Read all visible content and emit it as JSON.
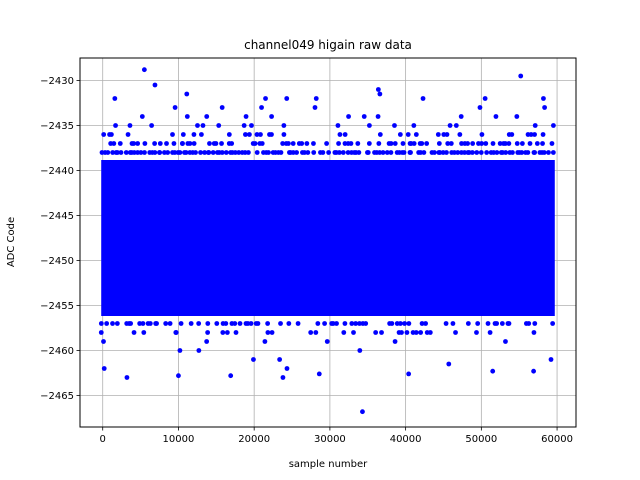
{
  "chart_data": {
    "type": "scatter",
    "title": "channel049 higain raw data",
    "xlabel": "sample number",
    "ylabel": "ADC Code",
    "xlim": [
      -3000,
      62500
    ],
    "ylim": [
      -2468.5,
      -2427.5
    ],
    "xticks": [
      0,
      10000,
      20000,
      30000,
      40000,
      50000,
      60000
    ],
    "yticks": [
      -2465,
      -2460,
      -2455,
      -2450,
      -2445,
      -2440,
      -2435,
      -2430
    ],
    "grid": true,
    "marker_color": "#0000ff",
    "n_samples": 60000,
    "dense_band": [
      -2456,
      -2439
    ],
    "sparse_levels": [
      -2438,
      -2437,
      -2436,
      -2435,
      -2434,
      -2433,
      -2432,
      -2457,
      -2458,
      -2459,
      -2460,
      -2461,
      -2462
    ],
    "outliers": [
      {
        "x": 5500,
        "y": -2428.8
      },
      {
        "x": 55200,
        "y": -2429.5
      },
      {
        "x": 6900,
        "y": -2430.5
      },
      {
        "x": 36400,
        "y": -2431
      },
      {
        "x": 36600,
        "y": -2431.5
      },
      {
        "x": 11100,
        "y": -2431.5
      },
      {
        "x": 58200,
        "y": -2432
      },
      {
        "x": 1600,
        "y": -2432
      },
      {
        "x": 24300,
        "y": -2432
      },
      {
        "x": 21500,
        "y": -2432
      },
      {
        "x": 28200,
        "y": -2432
      },
      {
        "x": 42300,
        "y": -2432
      },
      {
        "x": 50500,
        "y": -2432
      },
      {
        "x": 3200,
        "y": -2463
      },
      {
        "x": 10000,
        "y": -2462.8
      },
      {
        "x": 16900,
        "y": -2462.8
      },
      {
        "x": 23800,
        "y": -2463
      },
      {
        "x": 28600,
        "y": -2462.6
      },
      {
        "x": 34300,
        "y": -2466.8
      },
      {
        "x": 40400,
        "y": -2462.6
      },
      {
        "x": 51500,
        "y": -2462.3
      },
      {
        "x": 56900,
        "y": -2462.3
      },
      {
        "x": 200,
        "y": -2462
      },
      {
        "x": 59200,
        "y": -2461
      },
      {
        "x": 45700,
        "y": -2461.5
      }
    ]
  }
}
